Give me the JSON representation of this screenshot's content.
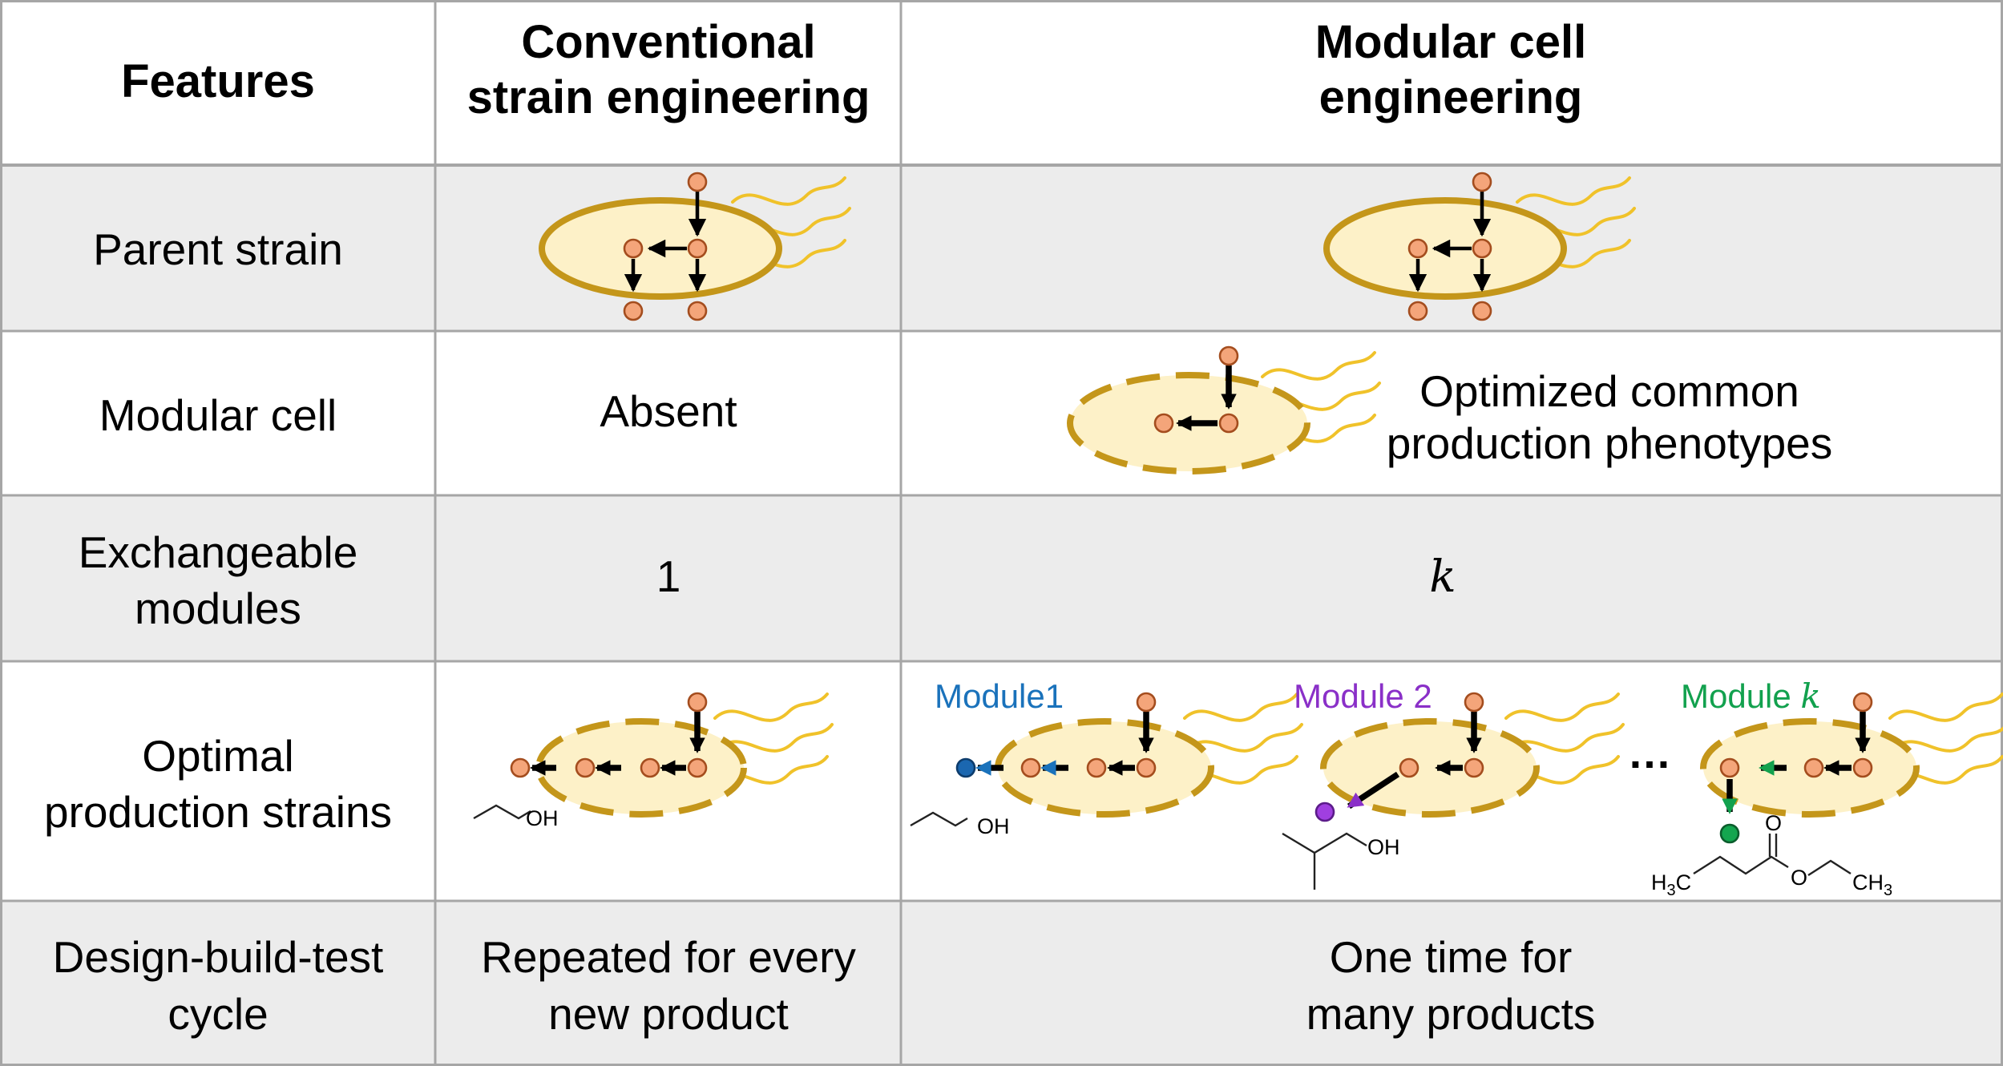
{
  "table": {
    "header": {
      "features": "Features",
      "conventional": [
        "Conventional",
        "strain engineering"
      ],
      "modular": [
        "Modular cell",
        "engineering"
      ]
    },
    "rows": {
      "parent": {
        "label": "Parent strain"
      },
      "modular_cell": {
        "label": "Modular cell",
        "conventional": "Absent",
        "modular_note": [
          "Optimized common",
          "production phenotypes"
        ]
      },
      "modules": {
        "label": [
          "Exchangeable",
          "modules"
        ],
        "conventional": "1",
        "modular": "k"
      },
      "optimal": {
        "label": [
          "Optimal",
          "production strains"
        ],
        "module1": "Module1",
        "module2": "Module 2",
        "module_k_prefix": "Module ",
        "module_k_var": "k",
        "ellipsis": "…"
      },
      "dbt": {
        "label": [
          "Design-build-test",
          "cycle"
        ],
        "conventional": [
          "Repeated for every",
          "new product"
        ],
        "modular": [
          "One time for",
          "many products"
        ]
      }
    },
    "chem": {
      "oh": "OH",
      "h3c_h": "H",
      "h3c_sub": "3",
      "h3c_c": "C",
      "o": "O",
      "ch3_ch": "CH",
      "ch3_sub": "3"
    }
  },
  "colors": {
    "header_bg": "#ffffff",
    "shaded_row_bg": "#ececec",
    "grid": "#a6a6a6",
    "cell_fill": "#fdf1c8",
    "cell_stroke": "#c4961a",
    "flagella": "#f0c22a",
    "metabolite": "#f4a57a",
    "module1": "#1a72bb",
    "module2": "#8a30c8",
    "module_k": "#12a14e"
  }
}
